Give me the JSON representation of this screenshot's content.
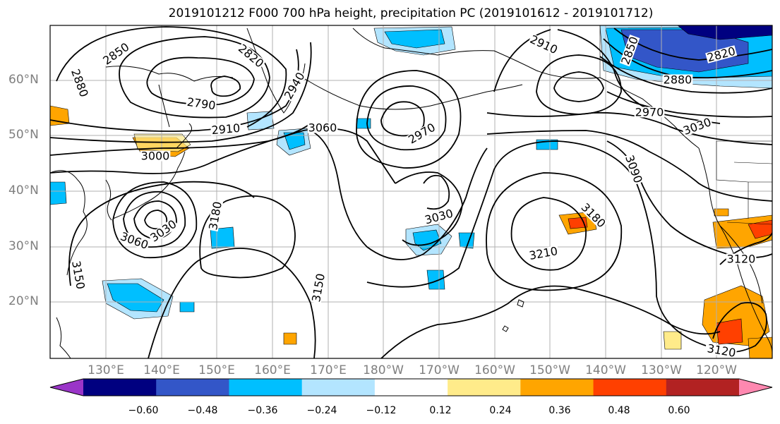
{
  "title": "2019101212 F000 700 hPa height, precipitation PC (2019101612 - 2019101712)",
  "lat_labels": [
    "60°N",
    "50°N",
    "40°N",
    "30°N",
    "20°N"
  ],
  "lon_labels": [
    "130°E",
    "140°E",
    "150°E",
    "160°E",
    "170°E",
    "180°W",
    "170°W",
    "160°W",
    "150°W",
    "140°W",
    "130°W",
    "120°W"
  ],
  "contour_labels": [
    {
      "text": "2850",
      "rotate": -35
    },
    {
      "text": "2820",
      "rotate": 40
    },
    {
      "text": "2880",
      "rotate": 70
    },
    {
      "text": "2790",
      "rotate": 8
    },
    {
      "text": "2940",
      "rotate": -60
    },
    {
      "text": "2910",
      "rotate": -5
    },
    {
      "text": "3000",
      "rotate": 0
    },
    {
      "text": "3060",
      "rotate": 0
    },
    {
      "text": "2970",
      "rotate": -30
    },
    {
      "text": "2910",
      "rotate": 25
    },
    {
      "text": "2850",
      "rotate": -70
    },
    {
      "text": "2820",
      "rotate": -15
    },
    {
      "text": "2880",
      "rotate": 0
    },
    {
      "text": "2970",
      "rotate": 0
    },
    {
      "text": "3030",
      "rotate": -20
    },
    {
      "text": "3090",
      "rotate": 70
    },
    {
      "text": "3180",
      "rotate": -80
    },
    {
      "text": "3030",
      "rotate": -15
    },
    {
      "text": "3180",
      "rotate": 45
    },
    {
      "text": "3210",
      "rotate": -10
    },
    {
      "text": "3150",
      "rotate": -80
    },
    {
      "text": "3150",
      "rotate": 80
    },
    {
      "text": "3060",
      "rotate": 20
    },
    {
      "text": "3030",
      "rotate": -35
    },
    {
      "text": "3120",
      "rotate": 0
    },
    {
      "text": "3120",
      "rotate": 10
    }
  ],
  "colorbar": {
    "colors": [
      "#9a35c8",
      "#000080",
      "#3356c8",
      "#00bfff",
      "#b3e5ff",
      "#ffffff",
      "#ffeb8a",
      "#ffa500",
      "#ff4000",
      "#b22222",
      "#ff88b0"
    ],
    "labels": [
      "−0.60",
      "−0.48",
      "−0.36",
      "−0.24",
      "−0.12",
      "0.12",
      "0.24",
      "0.36",
      "0.48",
      "0.60"
    ]
  },
  "shading_colors": {
    "neg_light": "#b3e5ff",
    "neg_mid": "#00bfff",
    "neg_dark": "#3356c8",
    "neg_darkest": "#000080",
    "pos_light": "#ffeb8a",
    "pos_mid": "#ffa500",
    "pos_dark": "#ff4000"
  }
}
